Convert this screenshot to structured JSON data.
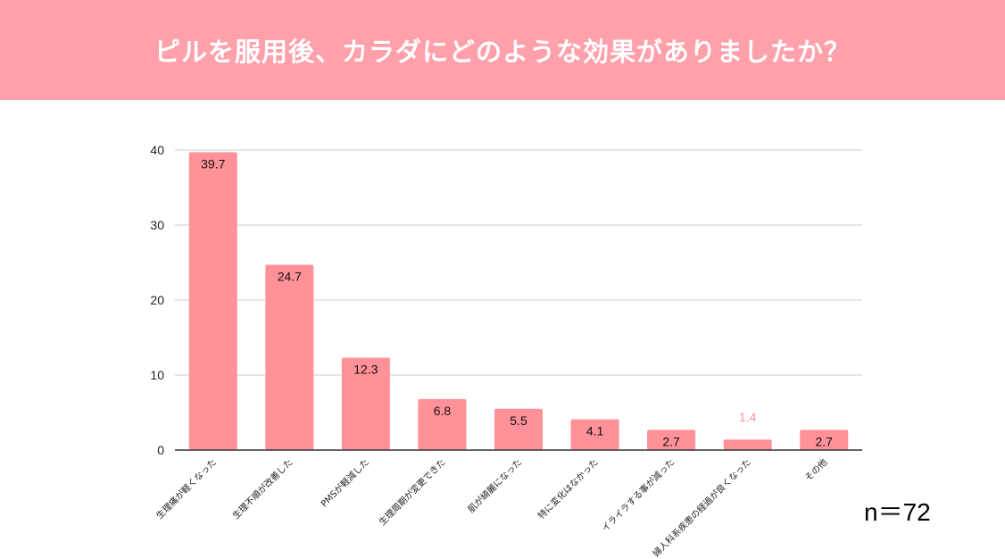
{
  "header": {
    "title": "ピルを服用後、カラダにどのような効果がありましたか？"
  },
  "sample_size": "n＝72",
  "colors": {
    "header_bg": "#ffa0aa",
    "bar": "#ff9198",
    "outside_label": "#ff9198"
  },
  "chart_data": {
    "type": "bar",
    "title": "ピルを服用後、カラダにどのような効果がありましたか？",
    "categories": [
      "生理痛が軽くなった",
      "生理不順が改善した",
      "PMSが軽減した",
      "生理周期が変更できた",
      "肌が綺麗になった",
      "特に変化はなかった",
      "イライラする事が減った",
      "婦人科系疾患の経過が良くなった",
      "その他"
    ],
    "values": [
      39.7,
      24.7,
      12.3,
      6.8,
      5.5,
      4.1,
      2.7,
      1.4,
      2.7
    ],
    "value_labels": [
      "39.7",
      "24.7",
      "12.3",
      "6.8",
      "5.5",
      "4.1",
      "2.7",
      "1.4",
      "2.7"
    ],
    "yticks": [
      "0",
      "10",
      "20",
      "30",
      "40"
    ],
    "ylim": [
      0,
      40
    ],
    "xlabel": "",
    "ylabel": "",
    "grid": true,
    "legend": "none"
  }
}
